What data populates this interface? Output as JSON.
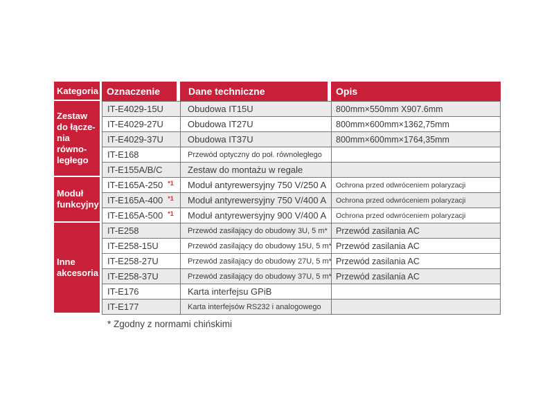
{
  "colors": {
    "accent_red": "#c9203a",
    "stripe_gray": "#ebebeb",
    "border_gray": "#757575",
    "text_dark": "#3b3b3b",
    "note_red": "#d02f3a"
  },
  "table": {
    "headers": {
      "kategoria": "Kategoria",
      "oznaczenie": "Oznaczenie",
      "dane": "Dane techniczne",
      "opis": "Opis"
    },
    "categories": [
      {
        "label": "Zestaw\ndo łącze-\nnia równo-\nległego",
        "rows": [
          {
            "oznaczenie": "IT-E4029-15U",
            "note": "",
            "dane": "Obudowa IT15U",
            "opis": "800mm×550mm X907.6mm"
          },
          {
            "oznaczenie": "IT-E4029-27U",
            "note": "",
            "dane": "Obudowa IT27U",
            "opis": "800mm×600mm×1362,75mm"
          },
          {
            "oznaczenie": "IT-E4029-37U",
            "note": "",
            "dane": "Obudowa IT37U",
            "opis": "800mm×600mm×1764,35mm"
          },
          {
            "oznaczenie": "IT-E168",
            "note": "",
            "dane": "Przewód optyczny do poł. równoległego",
            "opis": ""
          },
          {
            "oznaczenie": "IT-E155A/B/C",
            "note": "",
            "dane": "Zestaw do montażu w regale",
            "opis": ""
          }
        ]
      },
      {
        "label": "Moduł\nfunkcyjny",
        "rows": [
          {
            "oznaczenie": "IT-E165A-250",
            "note": "*1",
            "dane": "Moduł antyrewersyjny 750 V/250 A",
            "opis": "Ochrona przed odwróceniem polaryzacji"
          },
          {
            "oznaczenie": "IT-E165A-400",
            "note": "*1",
            "dane": "Moduł antyrewersyjny 750 V/400 A",
            "opis": "Ochrona przed odwróceniem polaryzacji"
          },
          {
            "oznaczenie": "IT-E165A-500",
            "note": "*1",
            "dane": "Moduł antyrewersyjny 900 V/400 A",
            "opis": "Ochrona przed odwróceniem polaryzacji"
          }
        ]
      },
      {
        "label": "Inne\nakcesoria",
        "rows": [
          {
            "oznaczenie": "IT-E258",
            "note": "",
            "dane": "Przewód zasilający do obudowy 3U, 5 m*",
            "opis": "Przewód zasilania AC"
          },
          {
            "oznaczenie": "IT-E258-15U",
            "note": "",
            "dane": "Przewód zasilający do obudowy 15U, 5 m*",
            "opis": "Przewód zasilania AC"
          },
          {
            "oznaczenie": "IT-E258-27U",
            "note": "",
            "dane": "Przewód zasilający do obudowy 27U, 5 m*",
            "opis": "Przewód zasilania AC"
          },
          {
            "oznaczenie": "IT-E258-37U",
            "note": "",
            "dane": "Przewód zasilający do obudowy 37U, 5 m*",
            "opis": "Przewód zasilania AC"
          },
          {
            "oznaczenie": "IT-E176",
            "note": "",
            "dane": "Karta interfejsu GPiB",
            "opis": ""
          },
          {
            "oznaczenie": "IT-E177",
            "note": "",
            "dane": "Karta interfejsów RS232 i analogowego",
            "opis": ""
          }
        ]
      }
    ]
  },
  "footnote": "* Zgodny z normami chińskimi"
}
